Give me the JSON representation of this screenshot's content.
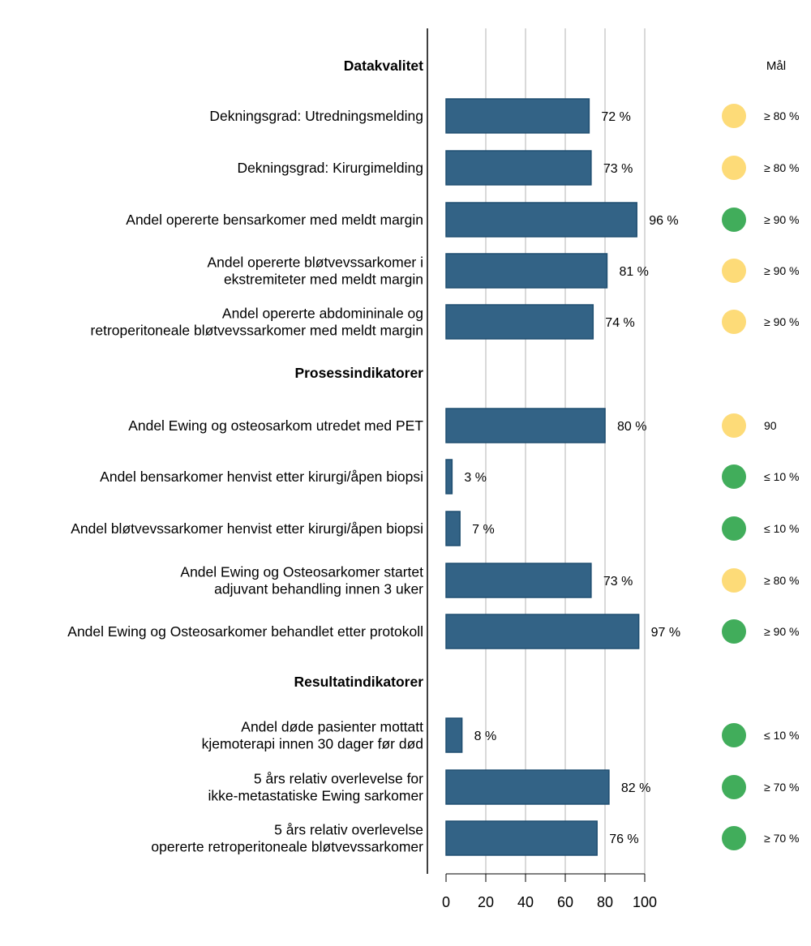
{
  "chart_data": {
    "type": "bar",
    "orientation": "horizontal",
    "xlim": [
      0,
      100
    ],
    "xticks": [
      "0",
      "20",
      "40",
      "60",
      "80",
      "100"
    ],
    "grid": true,
    "goal_header": "Mål",
    "colors": {
      "bar": "#336386",
      "bar_edge": "#1f4e70",
      "green": "#41ad5b",
      "yellow": "#fddb78",
      "grid": "#d9d9d9"
    },
    "sections": [
      {
        "title": "Datakvalitet",
        "items": [
          {
            "label": [
              "Dekningsgrad: Utredningsmelding"
            ],
            "value": 72,
            "value_label": "72 %",
            "status": "yellow",
            "goal": "≥ 80 %"
          },
          {
            "label": [
              "Dekningsgrad: Kirurgimelding"
            ],
            "value": 73,
            "value_label": "73 %",
            "status": "yellow",
            "goal": "≥ 80 %"
          },
          {
            "label": [
              "Andel opererte bensarkomer med meldt margin"
            ],
            "value": 96,
            "value_label": "96 %",
            "status": "green",
            "goal": "≥ 90 %"
          },
          {
            "label": [
              "Andel opererte bløtvevssarkomer i",
              "ekstremiteter med meldt margin"
            ],
            "value": 81,
            "value_label": "81 %",
            "status": "yellow",
            "goal": "≥ 90 %"
          },
          {
            "label": [
              "Andel opererte abdomininale og",
              "retroperitoneale bløtvevssarkomer med meldt margin"
            ],
            "value": 74,
            "value_label": "74 %",
            "status": "yellow",
            "goal": "≥ 90 %"
          }
        ]
      },
      {
        "title": "Prosessindikatorer",
        "items": [
          {
            "label": [
              "Andel Ewing og osteosarkom utredet med PET"
            ],
            "value": 80,
            "value_label": "80 %",
            "status": "yellow",
            "goal": "90"
          },
          {
            "label": [
              "Andel bensarkomer henvist etter kirurgi/åpen biopsi"
            ],
            "value": 3,
            "value_label": "3 %",
            "status": "green",
            "goal": "≤ 10 %"
          },
          {
            "label": [
              "Andel bløtvevssarkomer henvist etter kirurgi/åpen biopsi"
            ],
            "value": 7,
            "value_label": "7 %",
            "status": "green",
            "goal": "≤ 10 %"
          },
          {
            "label": [
              "Andel Ewing og Osteosarkomer startet",
              "adjuvant behandling innen 3 uker"
            ],
            "value": 73,
            "value_label": "73 %",
            "status": "yellow",
            "goal": "≥ 80 %"
          },
          {
            "label": [
              "Andel Ewing og Osteosarkomer behandlet etter protokoll"
            ],
            "value": 97,
            "value_label": "97 %",
            "status": "green",
            "goal": "≥ 90 %"
          }
        ]
      },
      {
        "title": "Resultatindikatorer",
        "items": [
          {
            "label": [
              "Andel døde pasienter mottatt",
              "kjemoterapi innen 30 dager før død"
            ],
            "value": 8,
            "value_label": "8 %",
            "status": "green",
            "goal": "≤ 10 %"
          },
          {
            "label": [
              "5 års relativ overlevelse for",
              "ikke-metastatiske Ewing sarkomer"
            ],
            "value": 82,
            "value_label": "82 %",
            "status": "green",
            "goal": "≥ 70 %"
          },
          {
            "label": [
              "5 års relativ overlevelse",
              "opererte retroperitoneale bløtvevssarkomer"
            ],
            "value": 76,
            "value_label": "76 %",
            "status": "green",
            "goal": "≥ 70 %"
          }
        ]
      }
    ]
  }
}
